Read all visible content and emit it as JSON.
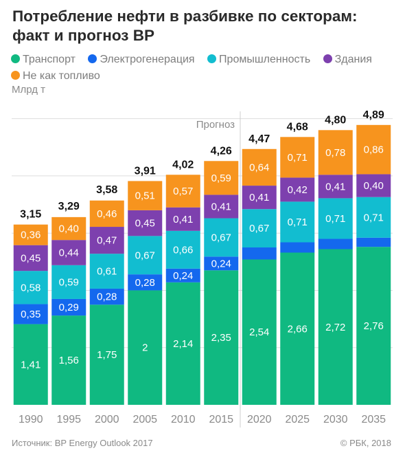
{
  "title": "Потребление нефти в разбивке по секторам: факт и прогноз BP",
  "unit_label": "Млрд т",
  "forecast_label": "Прогноз",
  "source": "Источник: BP Energy Outlook 2017",
  "copyright": "© РБК, 2018",
  "colors": {
    "background": "#ffffff",
    "grid": "#dddddd",
    "label_light": "#ffffff",
    "total_label": "#111111",
    "tick": "#8a8a8a"
  },
  "chart_data": {
    "type": "bar",
    "stacked": true,
    "title": "Потребление нефти в разбивке по секторам: факт и прогноз BP",
    "ylabel": "Млрд т",
    "ylim": [
      0,
      5.2
    ],
    "grid": true,
    "legend_position": "top",
    "categories": [
      "1990",
      "1995",
      "2000",
      "2005",
      "2010",
      "2015",
      "2020",
      "2025",
      "2030",
      "2035"
    ],
    "forecast_from": "2020",
    "series": [
      {
        "name": "Транспорт",
        "color": "#10b981",
        "values": [
          1.41,
          1.56,
          1.75,
          2,
          2.14,
          2.35,
          2.54,
          2.66,
          2.72,
          2.76
        ],
        "labels": [
          "1,41",
          "1,56",
          "1,75",
          "2",
          "2,14",
          "2,35",
          "2,54",
          "2,66",
          "2,72",
          "2,76"
        ]
      },
      {
        "name": "Электрогенерация",
        "color": "#1468ee",
        "values": [
          0.35,
          0.29,
          0.28,
          0.28,
          0.24,
          0.24,
          0.21,
          0.18,
          0.18,
          0.16
        ],
        "labels": [
          "0,35",
          "0,29",
          "0,28",
          "0,28",
          "0,24",
          "0,24",
          "",
          "",
          "",
          ""
        ]
      },
      {
        "name": "Промышленность",
        "color": "#12bdd0",
        "values": [
          0.58,
          0.59,
          0.61,
          0.67,
          0.66,
          0.67,
          0.67,
          0.71,
          0.71,
          0.71
        ],
        "labels": [
          "0,58",
          "0,59",
          "0,61",
          "0,67",
          "0,66",
          "0,67",
          "0,67",
          "0,71",
          "0,71",
          "0,71"
        ]
      },
      {
        "name": "Здания",
        "color": "#7d40ae",
        "values": [
          0.45,
          0.44,
          0.47,
          0.45,
          0.41,
          0.41,
          0.41,
          0.42,
          0.41,
          0.4
        ],
        "labels": [
          "0,45",
          "0,44",
          "0,47",
          "0,45",
          "0,41",
          "0,41",
          "0,41",
          "0,42",
          "0,41",
          "0,40"
        ]
      },
      {
        "name": "Не как топливо",
        "color": "#f7941e",
        "values": [
          0.36,
          0.4,
          0.46,
          0.51,
          0.57,
          0.59,
          0.64,
          0.71,
          0.78,
          0.86
        ],
        "labels": [
          "0,36",
          "0,40",
          "0,46",
          "0,51",
          "0,57",
          "0,59",
          "0,64",
          "0,71",
          "0,78",
          "0,86"
        ]
      }
    ],
    "totals": [
      3.15,
      3.29,
      3.58,
      3.91,
      4.02,
      4.26,
      4.47,
      4.68,
      4.8,
      4.89
    ],
    "total_labels": [
      "3,15",
      "3,29",
      "3,58",
      "3,91",
      "4,02",
      "4,26",
      "4,47",
      "4,68",
      "4,80",
      "4,89"
    ]
  }
}
